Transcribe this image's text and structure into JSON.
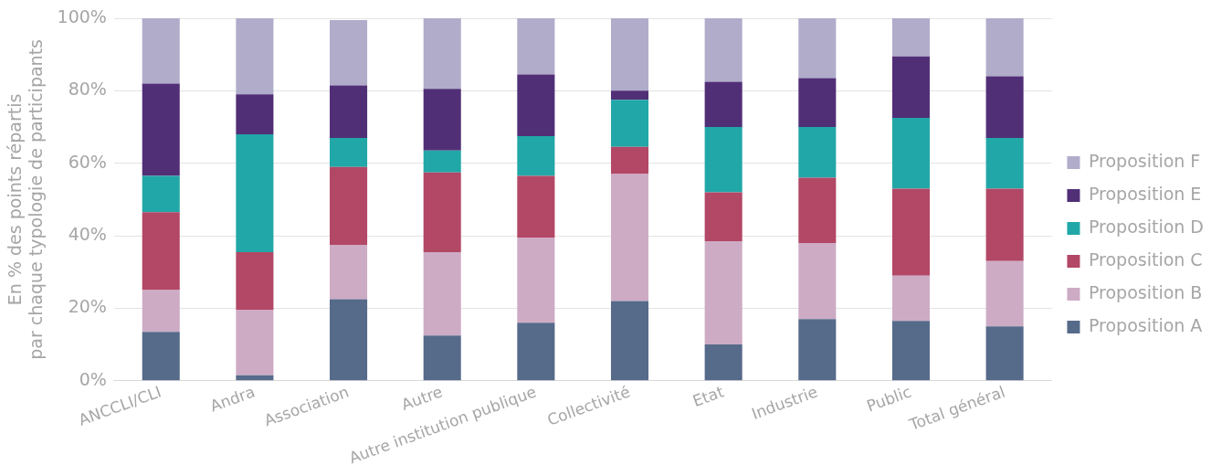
{
  "chart_data": {
    "type": "bar",
    "stacked": true,
    "ylabel": "En % des points répartis par chaque typologie de participants",
    "categories": [
      "ANCCLI/CLI",
      "Andra",
      "Association",
      "Autre",
      "Autre institution publique",
      "Collectivité",
      "Etat",
      "Industrie",
      "Public",
      "Total général"
    ],
    "series": [
      {
        "name": "Proposition A",
        "color": "#566a8a",
        "values": [
          13.5,
          1.5,
          22.5,
          12.5,
          16,
          22,
          10,
          17,
          16.5,
          15
        ]
      },
      {
        "name": "Proposition B",
        "color": "#cdabc5",
        "values": [
          11.5,
          18,
          15,
          23,
          23.5,
          35,
          28.5,
          21,
          12.5,
          18
        ]
      },
      {
        "name": "Proposition C",
        "color": "#b24766",
        "values": [
          21.5,
          16,
          21.5,
          22,
          17,
          7.5,
          13.5,
          18,
          24,
          20
        ]
      },
      {
        "name": "Proposition D",
        "color": "#21a7a7",
        "values": [
          10,
          32.5,
          8,
          6,
          11,
          13,
          18,
          14,
          19.5,
          14
        ]
      },
      {
        "name": "Proposition E",
        "color": "#512f77",
        "values": [
          25.5,
          11,
          14.5,
          17,
          17,
          2.5,
          12.5,
          13.5,
          17,
          17
        ]
      },
      {
        "name": "Proposition F",
        "color": "#b0acca",
        "values": [
          18,
          21,
          18,
          19.5,
          15.5,
          20,
          17.5,
          16.5,
          10.5,
          16
        ]
      }
    ],
    "ylim": [
      0,
      100
    ],
    "yticks": [
      {
        "value": 0,
        "label": "0%"
      },
      {
        "value": 20,
        "label": "20%"
      },
      {
        "value": 40,
        "label": "40%"
      },
      {
        "value": 60,
        "label": "60%"
      },
      {
        "value": 80,
        "label": "80%"
      },
      {
        "value": 100,
        "label": "100%"
      }
    ],
    "grid": "y",
    "legend": "right"
  }
}
